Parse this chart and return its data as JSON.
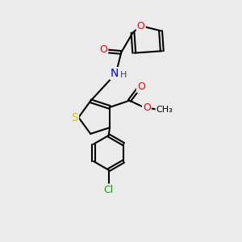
{
  "bg_color": "#ebebeb",
  "bond_color": "#000000",
  "bond_width": 1.5,
  "atom_colors": {
    "O": "#ff0000",
    "N": "#0000ff",
    "S": "#cccc00",
    "Cl": "#00aa00",
    "C": "#000000",
    "H": "#444444"
  },
  "font_size": 9,
  "fig_width": 3.0,
  "fig_height": 3.0,
  "dpi": 100
}
